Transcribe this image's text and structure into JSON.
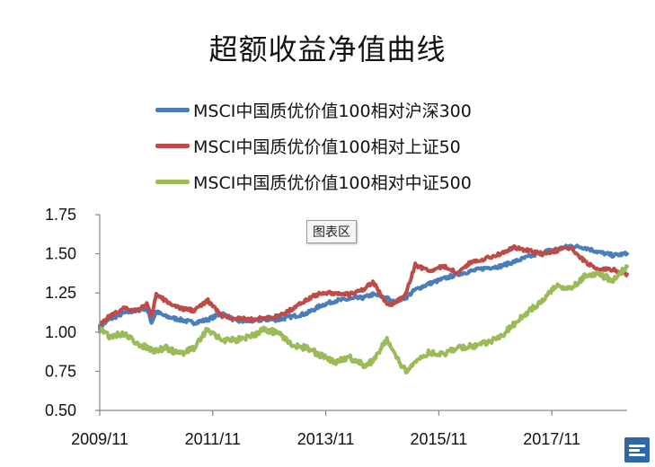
{
  "chart_data": {
    "type": "line",
    "title": "超额收益净值曲线",
    "xlabel": "",
    "ylabel": "",
    "ylim": [
      0.5,
      1.75
    ],
    "yticks": [
      "0.50",
      "0.75",
      "1.00",
      "1.25",
      "1.50",
      "1.75"
    ],
    "xlim": [
      "2009-11",
      "2019-03"
    ],
    "xticks": [
      {
        "x": "2009-11",
        "label": "2009/11"
      },
      {
        "x": "2011-11",
        "label": "2011/11"
      },
      {
        "x": "2013-11",
        "label": "2013/11"
      },
      {
        "x": "2015-11",
        "label": "2015/11"
      },
      {
        "x": "2017-11",
        "label": "2017/11"
      }
    ],
    "grid": false,
    "legend_position": "top",
    "plot_area_tag": "图表区",
    "series": [
      {
        "name": "MSCI中国质优价值100相对沪深300",
        "color": "#4a7ebb",
        "points": [
          [
            "2009-11",
            1.03
          ],
          [
            "2010-01",
            1.08
          ],
          [
            "2010-04",
            1.12
          ],
          [
            "2010-07",
            1.14
          ],
          [
            "2010-09",
            1.15
          ],
          [
            "2010-10",
            1.06
          ],
          [
            "2010-11",
            1.13
          ],
          [
            "2011-01",
            1.1
          ],
          [
            "2011-04",
            1.08
          ],
          [
            "2011-07",
            1.06
          ],
          [
            "2011-10",
            1.08
          ],
          [
            "2012-01",
            1.12
          ],
          [
            "2012-04",
            1.07
          ],
          [
            "2012-07",
            1.07
          ],
          [
            "2012-10",
            1.08
          ],
          [
            "2013-01",
            1.08
          ],
          [
            "2013-04",
            1.1
          ],
          [
            "2013-07",
            1.12
          ],
          [
            "2013-10",
            1.17
          ],
          [
            "2014-01",
            1.2
          ],
          [
            "2014-04",
            1.21
          ],
          [
            "2014-07",
            1.22
          ],
          [
            "2014-09",
            1.24
          ],
          [
            "2014-12",
            1.22
          ],
          [
            "2015-01",
            1.19
          ],
          [
            "2015-04",
            1.22
          ],
          [
            "2015-06",
            1.27
          ],
          [
            "2015-09",
            1.31
          ],
          [
            "2015-12",
            1.34
          ],
          [
            "2016-03",
            1.37
          ],
          [
            "2016-06",
            1.39
          ],
          [
            "2016-09",
            1.41
          ],
          [
            "2016-12",
            1.42
          ],
          [
            "2017-03",
            1.45
          ],
          [
            "2017-06",
            1.48
          ],
          [
            "2017-09",
            1.51
          ],
          [
            "2017-12",
            1.53
          ],
          [
            "2018-03",
            1.55
          ],
          [
            "2018-06",
            1.54
          ],
          [
            "2018-09",
            1.51
          ],
          [
            "2018-12",
            1.49
          ],
          [
            "2019-03",
            1.5
          ]
        ]
      },
      {
        "name": "MSCI中国质优价值100相对上证50",
        "color": "#be4b48",
        "points": [
          [
            "2009-11",
            1.05
          ],
          [
            "2010-01",
            1.1
          ],
          [
            "2010-04",
            1.15
          ],
          [
            "2010-07",
            1.14
          ],
          [
            "2010-09",
            1.18
          ],
          [
            "2010-10",
            1.1
          ],
          [
            "2010-11",
            1.24
          ],
          [
            "2011-01",
            1.2
          ],
          [
            "2011-04",
            1.15
          ],
          [
            "2011-07",
            1.14
          ],
          [
            "2011-10",
            1.2
          ],
          [
            "2012-01",
            1.1
          ],
          [
            "2012-04",
            1.09
          ],
          [
            "2012-07",
            1.08
          ],
          [
            "2012-10",
            1.09
          ],
          [
            "2013-01",
            1.1
          ],
          [
            "2013-04",
            1.15
          ],
          [
            "2013-07",
            1.21
          ],
          [
            "2013-10",
            1.25
          ],
          [
            "2014-01",
            1.25
          ],
          [
            "2014-04",
            1.24
          ],
          [
            "2014-07",
            1.27
          ],
          [
            "2014-09",
            1.32
          ],
          [
            "2014-12",
            1.18
          ],
          [
            "2015-01",
            1.17
          ],
          [
            "2015-04",
            1.24
          ],
          [
            "2015-06",
            1.43
          ],
          [
            "2015-09",
            1.39
          ],
          [
            "2015-12",
            1.42
          ],
          [
            "2016-03",
            1.38
          ],
          [
            "2016-06",
            1.45
          ],
          [
            "2016-09",
            1.47
          ],
          [
            "2016-12",
            1.5
          ],
          [
            "2017-03",
            1.54
          ],
          [
            "2017-06",
            1.52
          ],
          [
            "2017-09",
            1.5
          ],
          [
            "2017-12",
            1.52
          ],
          [
            "2018-03",
            1.54
          ],
          [
            "2018-06",
            1.45
          ],
          [
            "2018-09",
            1.4
          ],
          [
            "2018-12",
            1.4
          ],
          [
            "2019-03",
            1.37
          ]
        ]
      },
      {
        "name": "MSCI中国质优价值100相对中证500",
        "color": "#9bbb59",
        "points": [
          [
            "2009-11",
            1.02
          ],
          [
            "2010-01",
            0.97
          ],
          [
            "2010-04",
            0.99
          ],
          [
            "2010-07",
            0.93
          ],
          [
            "2010-09",
            0.9
          ],
          [
            "2010-10",
            0.89
          ],
          [
            "2010-11",
            0.88
          ],
          [
            "2011-01",
            0.9
          ],
          [
            "2011-04",
            0.86
          ],
          [
            "2011-07",
            0.9
          ],
          [
            "2011-10",
            1.02
          ],
          [
            "2012-01",
            0.95
          ],
          [
            "2012-04",
            0.95
          ],
          [
            "2012-07",
            0.97
          ],
          [
            "2012-10",
            1.02
          ],
          [
            "2013-01",
            0.99
          ],
          [
            "2013-04",
            0.91
          ],
          [
            "2013-07",
            0.9
          ],
          [
            "2013-10",
            0.85
          ],
          [
            "2014-01",
            0.81
          ],
          [
            "2014-04",
            0.84
          ],
          [
            "2014-07",
            0.79
          ],
          [
            "2014-09",
            0.81
          ],
          [
            "2014-12",
            0.96
          ],
          [
            "2015-01",
            0.88
          ],
          [
            "2015-04",
            0.75
          ],
          [
            "2015-06",
            0.82
          ],
          [
            "2015-09",
            0.87
          ],
          [
            "2015-12",
            0.86
          ],
          [
            "2016-03",
            0.9
          ],
          [
            "2016-06",
            0.91
          ],
          [
            "2016-09",
            0.93
          ],
          [
            "2016-12",
            0.97
          ],
          [
            "2017-03",
            1.05
          ],
          [
            "2017-06",
            1.13
          ],
          [
            "2017-09",
            1.2
          ],
          [
            "2017-12",
            1.3
          ],
          [
            "2018-03",
            1.27
          ],
          [
            "2018-06",
            1.36
          ],
          [
            "2018-09",
            1.37
          ],
          [
            "2018-12",
            1.33
          ],
          [
            "2019-03",
            1.42
          ]
        ]
      }
    ]
  }
}
